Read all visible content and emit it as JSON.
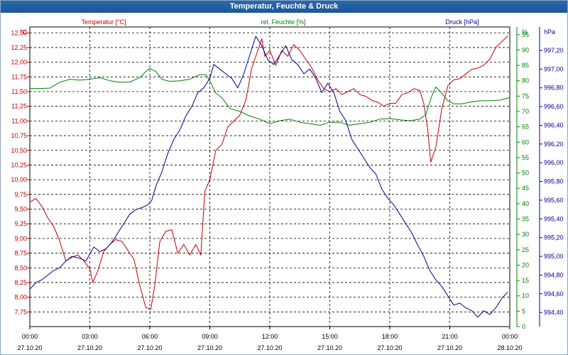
{
  "window": {
    "title": "Temperatur, Feuchte & Druck"
  },
  "chart_data": {
    "type": "line",
    "x_ticks": [
      {
        "time": "00:00",
        "date": "27.10.20"
      },
      {
        "time": "03:00",
        "date": "27.10.20"
      },
      {
        "time": "06:00",
        "date": "27.10.20"
      },
      {
        "time": "09:00",
        "date": "27.10.20"
      },
      {
        "time": "12:00",
        "date": "27.10.20"
      },
      {
        "time": "15:00",
        "date": "27.10.20"
      },
      {
        "time": "18:00",
        "date": "27.10.20"
      },
      {
        "time": "21:00",
        "date": "27.10.20"
      },
      {
        "time": "00:00",
        "date": "28.10.20"
      }
    ],
    "x_unit": "hours since 27.10.20 00:00",
    "xlim": [
      0,
      24
    ],
    "grid": true,
    "series": [
      {
        "name": "Temperatur [°C]",
        "color": "#c00000",
        "axis": "left",
        "unit_label": "°C",
        "ylim": [
          7.5,
          12.6
        ],
        "ticks": [
          "7,75",
          "8,00",
          "8,25",
          "8,50",
          "8,75",
          "9,00",
          "9,25",
          "9,50",
          "9,75",
          "10,00",
          "10,25",
          "10,50",
          "10,75",
          "11,00",
          "11,25",
          "11,50",
          "11,75",
          "12,00",
          "12,25",
          "12,50"
        ],
        "points": [
          [
            0,
            9.62
          ],
          [
            0.3,
            9.68
          ],
          [
            0.6,
            9.55
          ],
          [
            0.9,
            9.35
          ],
          [
            1.2,
            9.2
          ],
          [
            1.5,
            8.95
          ],
          [
            1.8,
            8.62
          ],
          [
            2.1,
            8.68
          ],
          [
            2.4,
            8.72
          ],
          [
            2.7,
            8.62
          ],
          [
            3.0,
            8.48
          ],
          [
            3.15,
            8.25
          ],
          [
            3.4,
            8.45
          ],
          [
            3.7,
            8.78
          ],
          [
            4.0,
            8.9
          ],
          [
            4.3,
            8.98
          ],
          [
            4.6,
            8.95
          ],
          [
            4.9,
            8.8
          ],
          [
            5.2,
            8.65
          ],
          [
            5.5,
            8.2
          ],
          [
            5.8,
            7.82
          ],
          [
            6.05,
            7.8
          ],
          [
            6.25,
            8.2
          ],
          [
            6.5,
            8.95
          ],
          [
            6.8,
            9.12
          ],
          [
            7.1,
            9.15
          ],
          [
            7.4,
            8.75
          ],
          [
            7.7,
            8.9
          ],
          [
            8.0,
            8.72
          ],
          [
            8.3,
            8.9
          ],
          [
            8.55,
            8.72
          ],
          [
            8.75,
            9.8
          ],
          [
            9.0,
            10.0
          ],
          [
            9.3,
            10.5
          ],
          [
            9.6,
            10.6
          ],
          [
            9.9,
            10.9
          ],
          [
            10.2,
            11.0
          ],
          [
            10.5,
            11.1
          ],
          [
            10.8,
            11.35
          ],
          [
            11.1,
            11.9
          ],
          [
            11.4,
            12.2
          ],
          [
            11.6,
            12.4
          ],
          [
            11.75,
            12.1
          ],
          [
            12.0,
            12.2
          ],
          [
            12.3,
            11.95
          ],
          [
            12.6,
            12.2
          ],
          [
            12.9,
            12.1
          ],
          [
            13.2,
            12.3
          ],
          [
            13.5,
            12.2
          ],
          [
            13.8,
            12.05
          ],
          [
            14.1,
            11.9
          ],
          [
            14.4,
            11.7
          ],
          [
            14.7,
            11.55
          ],
          [
            15.0,
            11.5
          ],
          [
            15.3,
            11.55
          ],
          [
            15.6,
            11.45
          ],
          [
            15.9,
            11.5
          ],
          [
            16.2,
            11.55
          ],
          [
            16.5,
            11.45
          ],
          [
            16.8,
            11.42
          ],
          [
            17.1,
            11.35
          ],
          [
            17.4,
            11.32
          ],
          [
            17.7,
            11.25
          ],
          [
            18.0,
            11.3
          ],
          [
            18.3,
            11.3
          ],
          [
            18.6,
            11.45
          ],
          [
            18.9,
            11.48
          ],
          [
            19.2,
            11.55
          ],
          [
            19.5,
            11.52
          ],
          [
            19.7,
            11.3
          ],
          [
            19.9,
            10.85
          ],
          [
            20.05,
            10.3
          ],
          [
            20.3,
            10.55
          ],
          [
            20.6,
            11.2
          ],
          [
            20.9,
            11.6
          ],
          [
            21.2,
            11.7
          ],
          [
            21.5,
            11.72
          ],
          [
            21.8,
            11.8
          ],
          [
            22.1,
            11.88
          ],
          [
            22.4,
            11.9
          ],
          [
            22.7,
            11.95
          ],
          [
            23.0,
            12.05
          ],
          [
            23.3,
            12.25
          ],
          [
            23.6,
            12.35
          ],
          [
            23.9,
            12.45
          ]
        ]
      },
      {
        "name": "rel. Feuchte [%]",
        "color": "#008000",
        "axis": "right",
        "unit_label": "%",
        "ylim": [
          0,
          97.5
        ],
        "ticks": [
          "0",
          "5",
          "10",
          "15",
          "20",
          "25",
          "30",
          "35",
          "40",
          "45",
          "50",
          "55",
          "60",
          "65",
          "70",
          "75",
          "80",
          "85",
          "90",
          "95"
        ],
        "points": [
          [
            0,
            77.5
          ],
          [
            0.5,
            77.5
          ],
          [
            1.0,
            77.6
          ],
          [
            1.5,
            79.5
          ],
          [
            2.0,
            80.5
          ],
          [
            2.5,
            80.2
          ],
          [
            3.0,
            80.5
          ],
          [
            3.5,
            81
          ],
          [
            4.0,
            80
          ],
          [
            4.5,
            79.5
          ],
          [
            5.0,
            79.6
          ],
          [
            5.5,
            81
          ],
          [
            5.8,
            83
          ],
          [
            6.0,
            84
          ],
          [
            6.3,
            83
          ],
          [
            6.6,
            80.5
          ],
          [
            7.0,
            79.8
          ],
          [
            7.5,
            80
          ],
          [
            8.0,
            80.5
          ],
          [
            8.5,
            82
          ],
          [
            8.8,
            82
          ],
          [
            9.0,
            80
          ],
          [
            9.3,
            76
          ],
          [
            9.6,
            74.5
          ],
          [
            10.0,
            71
          ],
          [
            10.5,
            70
          ],
          [
            11.0,
            68.5
          ],
          [
            11.5,
            67.5
          ],
          [
            12.0,
            66
          ],
          [
            12.5,
            67
          ],
          [
            13.0,
            67.5
          ],
          [
            13.5,
            66.5
          ],
          [
            14.0,
            66
          ],
          [
            14.5,
            65.5
          ],
          [
            15.0,
            66.5
          ],
          [
            15.5,
            66.5
          ],
          [
            16.0,
            65.5
          ],
          [
            16.5,
            66
          ],
          [
            17.0,
            66.5
          ],
          [
            17.5,
            67.5
          ],
          [
            18.0,
            67.7
          ],
          [
            18.5,
            67.3
          ],
          [
            19.0,
            67
          ],
          [
            19.5,
            67.5
          ],
          [
            19.8,
            69
          ],
          [
            20.1,
            75
          ],
          [
            20.3,
            78
          ],
          [
            20.6,
            76
          ],
          [
            20.9,
            73.5
          ],
          [
            21.2,
            72.5
          ],
          [
            21.6,
            72.5
          ],
          [
            22.0,
            73
          ],
          [
            22.5,
            73.5
          ],
          [
            23.0,
            73.5
          ],
          [
            23.5,
            73.7
          ],
          [
            24.0,
            74.5
          ]
        ]
      },
      {
        "name": "Druck [hPa]",
        "color": "#00008b",
        "axis": "right",
        "unit_label": "hPa",
        "ylim": [
          994.25,
          997.45
        ],
        "ticks": [
          "994,40",
          "994,60",
          "994,80",
          "995,00",
          "995,20",
          "995,40",
          "995,60",
          "995,80",
          "996,00",
          "996,20",
          "996,40",
          "996,60",
          "996,80",
          "997,00",
          "997,20"
        ],
        "points": [
          [
            0,
            994.65
          ],
          [
            0.3,
            994.72
          ],
          [
            0.6,
            994.75
          ],
          [
            0.9,
            994.8
          ],
          [
            1.2,
            994.85
          ],
          [
            1.5,
            994.88
          ],
          [
            1.8,
            994.95
          ],
          [
            2.1,
            995
          ],
          [
            2.5,
            994.98
          ],
          [
            2.8,
            994.95
          ],
          [
            3.2,
            995.1
          ],
          [
            3.5,
            995.05
          ],
          [
            3.8,
            995.08
          ],
          [
            4.1,
            995.15
          ],
          [
            4.4,
            995.25
          ],
          [
            4.7,
            995.35
          ],
          [
            5.0,
            995.45
          ],
          [
            5.3,
            995.5
          ],
          [
            5.6,
            995.52
          ],
          [
            5.9,
            995.55
          ],
          [
            6.1,
            995.6
          ],
          [
            6.3,
            995.75
          ],
          [
            6.6,
            995.9
          ],
          [
            6.9,
            996.1
          ],
          [
            7.2,
            996.25
          ],
          [
            7.5,
            996.35
          ],
          [
            7.8,
            996.5
          ],
          [
            8.1,
            996.6
          ],
          [
            8.4,
            996.75
          ],
          [
            8.7,
            996.8
          ],
          [
            9.0,
            996.9
          ],
          [
            9.2,
            997.05
          ],
          [
            9.5,
            997
          ],
          [
            9.8,
            996.95
          ],
          [
            10.1,
            996.9
          ],
          [
            10.4,
            996.8
          ],
          [
            10.7,
            996.95
          ],
          [
            11.0,
            997.15
          ],
          [
            11.3,
            997.35
          ],
          [
            11.6,
            997.25
          ],
          [
            11.9,
            997.1
          ],
          [
            12.2,
            997.05
          ],
          [
            12.5,
            997.15
          ],
          [
            12.8,
            997.25
          ],
          [
            13.1,
            997.1
          ],
          [
            13.4,
            997.05
          ],
          [
            13.7,
            996.95
          ],
          [
            14.0,
            997
          ],
          [
            14.3,
            996.9
          ],
          [
            14.6,
            996.75
          ],
          [
            14.9,
            996.85
          ],
          [
            15.2,
            996.75
          ],
          [
            15.5,
            996.55
          ],
          [
            15.8,
            996.45
          ],
          [
            16.1,
            996.25
          ],
          [
            16.4,
            996.15
          ],
          [
            16.7,
            996.05
          ],
          [
            17.0,
            995.95
          ],
          [
            17.3,
            995.88
          ],
          [
            17.6,
            995.72
          ],
          [
            17.9,
            995.62
          ],
          [
            18.2,
            995.55
          ],
          [
            18.5,
            995.45
          ],
          [
            18.8,
            995.35
          ],
          [
            19.1,
            995.25
          ],
          [
            19.4,
            995.12
          ],
          [
            19.7,
            995
          ],
          [
            20.0,
            994.85
          ],
          [
            20.3,
            994.75
          ],
          [
            20.6,
            994.68
          ],
          [
            20.9,
            994.58
          ],
          [
            21.2,
            994.48
          ],
          [
            21.5,
            994.5
          ],
          [
            21.8,
            994.45
          ],
          [
            22.1,
            994.42
          ],
          [
            22.4,
            994.35
          ],
          [
            22.7,
            994.42
          ],
          [
            23.0,
            994.38
          ],
          [
            23.3,
            994.45
          ],
          [
            23.6,
            994.55
          ],
          [
            23.9,
            994.62
          ]
        ]
      }
    ]
  }
}
